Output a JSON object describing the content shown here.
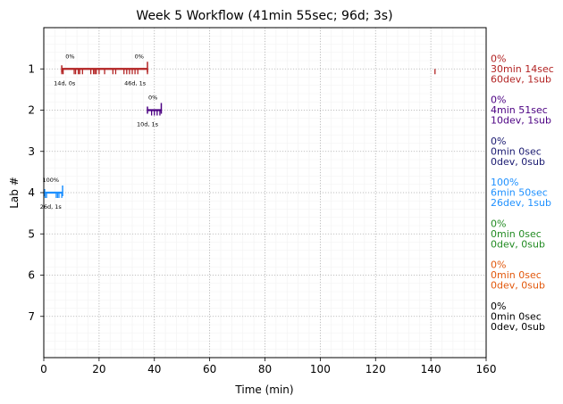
{
  "chart_data": {
    "type": "timeline",
    "title": "Week 5 Workflow (41min 55sec; 96d; 3s)",
    "xlabel": "Time (min)",
    "ylabel": "Lab #",
    "xlim": [
      0,
      160
    ],
    "ylim": [
      8,
      0
    ],
    "x_ticks": [
      0,
      20,
      40,
      60,
      80,
      100,
      120,
      140,
      160
    ],
    "y_ticks": [
      1,
      2,
      3,
      4,
      5,
      6,
      7
    ],
    "grid": true,
    "labs": [
      {
        "lab": 1,
        "color": "#b22222",
        "segments": [
          [
            6.5,
            37.5
          ]
        ],
        "events": [
          6.5,
          7,
          11,
          11.5,
          12.5,
          13,
          14,
          17,
          18,
          18.5,
          19,
          20,
          22,
          25,
          26,
          29,
          30,
          31,
          32,
          33,
          34,
          37.5,
          141.5
        ],
        "top_labels": [
          {
            "x": 9.5,
            "text": "0%"
          },
          {
            "x": 34.5,
            "text": "0%"
          }
        ],
        "bottom_labels": [
          {
            "x": 7.5,
            "text": "14d, 0s"
          },
          {
            "x": 33,
            "text": "46d, 1s"
          }
        ],
        "side": [
          "0%",
          "30min 14sec",
          "60dev, 1sub"
        ]
      },
      {
        "lab": 2,
        "color": "#4b0082",
        "segments": [
          [
            37.5,
            42.5
          ]
        ],
        "events": [
          39,
          40,
          41,
          42
        ],
        "top_labels": [
          {
            "x": 39.5,
            "text": "0%"
          }
        ],
        "bottom_labels": [
          {
            "x": 37.5,
            "text": "10d, 1s"
          }
        ],
        "side": [
          "0%",
          "4min 51sec",
          "10dev, 1sub"
        ]
      },
      {
        "lab": 3,
        "color": "#191970",
        "segments": [],
        "events": [],
        "top_labels": [],
        "bottom_labels": [],
        "side": [
          "0%",
          "0min 0sec",
          "0dev, 0sub"
        ]
      },
      {
        "lab": 4,
        "color": "#1e90ff",
        "segments": [
          [
            0.3,
            6.8
          ]
        ],
        "events": [
          0.5,
          1,
          4.5,
          5,
          5.5,
          6.5
        ],
        "top_labels": [
          {
            "x": 2.5,
            "text": "100%"
          }
        ],
        "bottom_labels": [
          {
            "x": 2.5,
            "text": "26d, 1s"
          }
        ],
        "side": [
          "100%",
          "6min 50sec",
          "26dev, 1sub"
        ]
      },
      {
        "lab": 5,
        "color": "#228b22",
        "segments": [],
        "events": [],
        "top_labels": [],
        "bottom_labels": [],
        "side": [
          "0%",
          "0min 0sec",
          "0dev, 0sub"
        ]
      },
      {
        "lab": 6,
        "color": "#e2580c",
        "segments": [],
        "events": [],
        "top_labels": [],
        "bottom_labels": [],
        "side": [
          "0%",
          "0min 0sec",
          "0dev, 0sub"
        ]
      },
      {
        "lab": 7,
        "color": "#000000",
        "segments": [],
        "events": [],
        "top_labels": [],
        "bottom_labels": [],
        "side": [
          "0%",
          "0min 0sec",
          "0dev, 0sub"
        ]
      }
    ]
  }
}
